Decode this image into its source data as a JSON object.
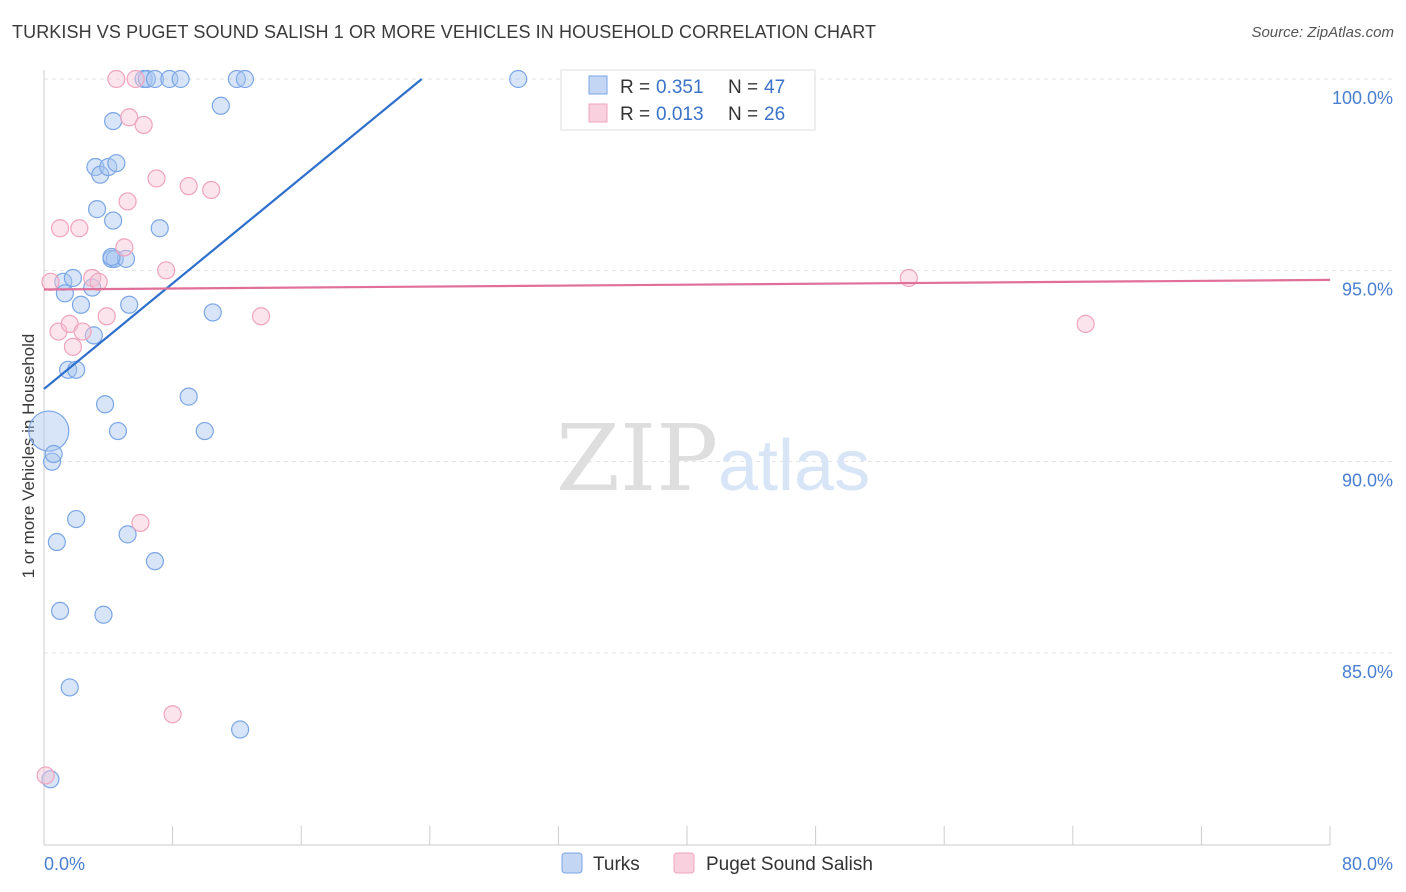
{
  "header": {
    "title": "TURKISH VS PUGET SOUND SALISH 1 OR MORE VEHICLES IN HOUSEHOLD CORRELATION CHART",
    "source": "Source: ZipAtlas.com"
  },
  "watermark": {
    "zip": "ZIP",
    "atlas": "atlas"
  },
  "legend": {
    "rows": [
      {
        "r_label": "R =",
        "r_value": "0.351",
        "n_label": "N =",
        "n_value": "47"
      },
      {
        "r_label": "R =",
        "r_value": "0.013",
        "n_label": "N =",
        "n_value": "26"
      }
    ]
  },
  "chart_data": {
    "type": "scatter",
    "title": "TURKISH VS PUGET SOUND SALISH 1 OR MORE VEHICLES IN HOUSEHOLD CORRELATION CHART",
    "xlabel": "",
    "ylabel": "1 or more Vehicles in Household",
    "xlim": [
      0,
      80
    ],
    "ylim": [
      80.9,
      100.5
    ],
    "x_tick_labels": [
      "0.0%",
      "80.0%"
    ],
    "y_ticks": [
      85,
      90,
      95,
      100
    ],
    "y_tick_labels": [
      "85.0%",
      "90.0%",
      "95.0%",
      "100.0%"
    ],
    "grid": true,
    "colors": {
      "turks": "#7ba6e6",
      "turks_line": "#2f6fcc",
      "salish": "#f0a3bd",
      "salish_line": "#e0709a",
      "tick_text": "#4a7fd0"
    },
    "series": [
      {
        "name": "Turks",
        "r": 0.351,
        "n": 47,
        "trend": {
          "x": [
            0,
            23.5
          ],
          "y": [
            91.9,
            100.0
          ]
        },
        "points": [
          {
            "x": 0.3,
            "y": 90.8,
            "big": true
          },
          {
            "x": 0.4,
            "y": 81.7
          },
          {
            "x": 0.5,
            "y": 90.0
          },
          {
            "x": 0.6,
            "y": 90.2
          },
          {
            "x": 0.8,
            "y": 87.9
          },
          {
            "x": 1.0,
            "y": 86.1
          },
          {
            "x": 1.2,
            "y": 94.7
          },
          {
            "x": 1.3,
            "y": 94.4
          },
          {
            "x": 1.5,
            "y": 92.4
          },
          {
            "x": 1.6,
            "y": 84.1
          },
          {
            "x": 1.8,
            "y": 94.8
          },
          {
            "x": 2.0,
            "y": 92.4
          },
          {
            "x": 2.0,
            "y": 88.5
          },
          {
            "x": 2.3,
            "y": 94.1
          },
          {
            "x": 3.1,
            "y": 93.3
          },
          {
            "x": 3.2,
            "y": 97.7
          },
          {
            "x": 3.3,
            "y": 96.6
          },
          {
            "x": 3.5,
            "y": 97.5
          },
          {
            "x": 3.7,
            "y": 86.0
          },
          {
            "x": 3.8,
            "y": 91.5
          },
          {
            "x": 4.0,
            "y": 97.7
          },
          {
            "x": 4.2,
            "y": 95.3
          },
          {
            "x": 4.3,
            "y": 98.9
          },
          {
            "x": 4.3,
            "y": 96.3
          },
          {
            "x": 4.4,
            "y": 95.3
          },
          {
            "x": 4.5,
            "y": 97.8
          },
          {
            "x": 4.6,
            "y": 90.8
          },
          {
            "x": 5.1,
            "y": 95.3
          },
          {
            "x": 5.2,
            "y": 88.1
          },
          {
            "x": 5.3,
            "y": 94.1
          },
          {
            "x": 6.2,
            "y": 100.0
          },
          {
            "x": 6.4,
            "y": 100.0
          },
          {
            "x": 6.9,
            "y": 100.0
          },
          {
            "x": 6.9,
            "y": 87.4
          },
          {
            "x": 7.2,
            "y": 96.1
          },
          {
            "x": 7.8,
            "y": 100.0
          },
          {
            "x": 8.5,
            "y": 100.0
          },
          {
            "x": 9.0,
            "y": 91.7
          },
          {
            "x": 10.0,
            "y": 90.8
          },
          {
            "x": 10.5,
            "y": 93.9
          },
          {
            "x": 11.0,
            "y": 99.3
          },
          {
            "x": 12.0,
            "y": 100.0
          },
          {
            "x": 12.2,
            "y": 83.0
          },
          {
            "x": 12.5,
            "y": 100.0
          },
          {
            "x": 29.5,
            "y": 100.0
          },
          {
            "x": 4.2,
            "y": 95.35
          },
          {
            "x": 3.0,
            "y": 94.55
          }
        ]
      },
      {
        "name": "Puget Sound Salish",
        "r": 0.013,
        "n": 26,
        "trend": {
          "x": [
            0,
            80
          ],
          "y": [
            94.5,
            94.75
          ]
        },
        "points": [
          {
            "x": 0.1,
            "y": 81.8
          },
          {
            "x": 0.4,
            "y": 94.7
          },
          {
            "x": 0.9,
            "y": 93.4
          },
          {
            "x": 1.0,
            "y": 96.1
          },
          {
            "x": 1.6,
            "y": 93.6
          },
          {
            "x": 1.8,
            "y": 93.0
          },
          {
            "x": 2.2,
            "y": 96.1
          },
          {
            "x": 2.4,
            "y": 93.4
          },
          {
            "x": 3.0,
            "y": 94.8
          },
          {
            "x": 3.4,
            "y": 94.7
          },
          {
            "x": 3.9,
            "y": 93.8
          },
          {
            "x": 4.5,
            "y": 100.0
          },
          {
            "x": 5.0,
            "y": 95.6
          },
          {
            "x": 5.2,
            "y": 96.8
          },
          {
            "x": 5.3,
            "y": 99.0
          },
          {
            "x": 5.7,
            "y": 100.0
          },
          {
            "x": 6.0,
            "y": 88.4
          },
          {
            "x": 6.2,
            "y": 98.8
          },
          {
            "x": 7.0,
            "y": 97.4
          },
          {
            "x": 7.6,
            "y": 95.0
          },
          {
            "x": 8.0,
            "y": 83.4
          },
          {
            "x": 9.0,
            "y": 97.2
          },
          {
            "x": 10.4,
            "y": 97.1
          },
          {
            "x": 13.5,
            "y": 93.8
          },
          {
            "x": 53.8,
            "y": 94.8
          },
          {
            "x": 64.8,
            "y": 93.6
          }
        ]
      }
    ]
  }
}
